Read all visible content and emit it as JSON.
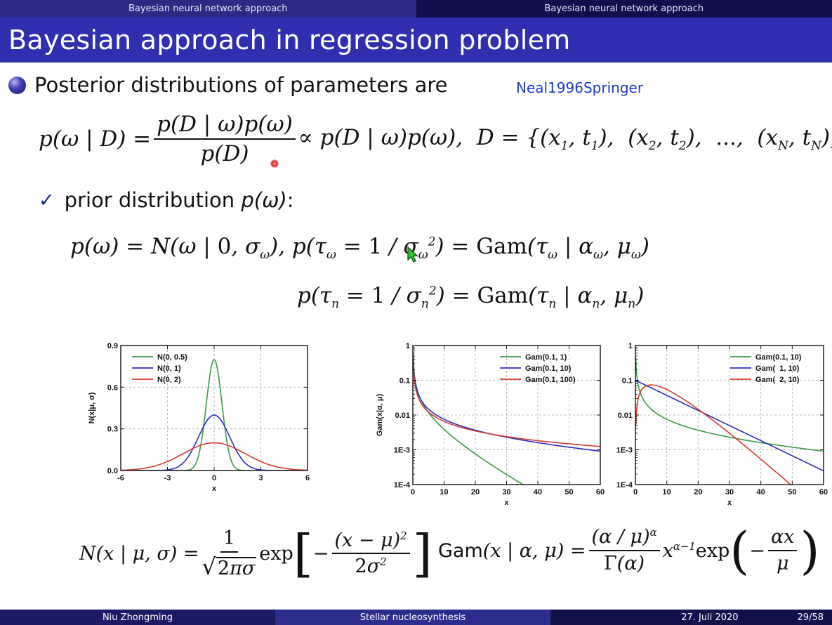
{
  "header": {
    "left_title": "Bayesian neural network approach",
    "right_title": "Bayesian neural network approach"
  },
  "slide": {
    "title": "Bayesian approach in regression problem",
    "bullet": "Posterior distributions of parameters are",
    "citation": "Neal1996Springer",
    "check_prefix": "prior distribution ",
    "check_math": "p(ω)",
    "check_suffix": ":"
  },
  "footer": {
    "author": "Niu Zhongming",
    "talk_title": "Stellar nucleosynthesis",
    "date": "27. Juli 2020",
    "page": "29/58"
  },
  "colors": {
    "header_left": "#2b2b86",
    "header_right": "#0f0f4c",
    "title_bg": "#2f2fb0",
    "citation": "#1e3cc8",
    "green": "#3a9a48",
    "blue": "#2c2cc4",
    "red": "#d63b30"
  },
  "chart_data": [
    {
      "type": "line",
      "xlabel": "x",
      "ylabel": "N(x|μ, σ)",
      "xlim": [
        -6,
        6
      ],
      "ylim": [
        0,
        0.9
      ],
      "x_ticks": [
        "-6",
        "-3",
        "0",
        "3",
        "6"
      ],
      "y_ticks": [
        "0.0",
        "0.3",
        "0.6",
        "0.9"
      ],
      "grid": true,
      "legend_position": "top-left",
      "series": [
        {
          "name": "N(0, 0.5)",
          "mu": 0,
          "sigma": 0.5,
          "color": "green"
        },
        {
          "name": "N(0, 1)",
          "mu": 0,
          "sigma": 1,
          "color": "blue"
        },
        {
          "name": "N(0, 2)",
          "mu": 0,
          "sigma": 2,
          "color": "red"
        }
      ]
    },
    {
      "type": "line",
      "xlabel": "x",
      "ylabel": "Gam(x|α, μ)",
      "xlim": [
        0,
        60
      ],
      "ylim": [
        0.0001,
        1
      ],
      "y_scale": "log",
      "x_ticks": [
        "0",
        "10",
        "20",
        "30",
        "40",
        "50",
        "60"
      ],
      "y_ticks": [
        "1E-4",
        "1E-3",
        "0.01",
        "0.1",
        "1"
      ],
      "grid": true,
      "legend_position": "top-right",
      "series": [
        {
          "name": "Gam(0.1, 1)",
          "alpha": 0.1,
          "mu": 1,
          "color": "green"
        },
        {
          "name": "Gam(0.1, 10)",
          "alpha": 0.1,
          "mu": 10,
          "color": "blue"
        },
        {
          "name": "Gam(0.1, 100)",
          "alpha": 0.1,
          "mu": 100,
          "color": "red"
        }
      ]
    },
    {
      "type": "line",
      "xlabel": "x",
      "ylabel": "",
      "xlim": [
        0,
        60
      ],
      "ylim": [
        0.0001,
        1
      ],
      "y_scale": "log",
      "x_ticks": [
        "0",
        "10",
        "20",
        "30",
        "40",
        "50",
        "60"
      ],
      "y_ticks": [
        "1E-4",
        "1E-3",
        "0.01",
        "0.1",
        "1"
      ],
      "grid": true,
      "legend_position": "top-right",
      "series": [
        {
          "name": "Gam(0.1, 10)",
          "alpha": 0.1,
          "mu": 10,
          "color": "green"
        },
        {
          "name": "Gam(  1, 10)",
          "alpha": 1,
          "mu": 10,
          "color": "blue"
        },
        {
          "name": "Gam(  2, 10)",
          "alpha": 2,
          "mu": 10,
          "color": "red"
        }
      ]
    }
  ]
}
